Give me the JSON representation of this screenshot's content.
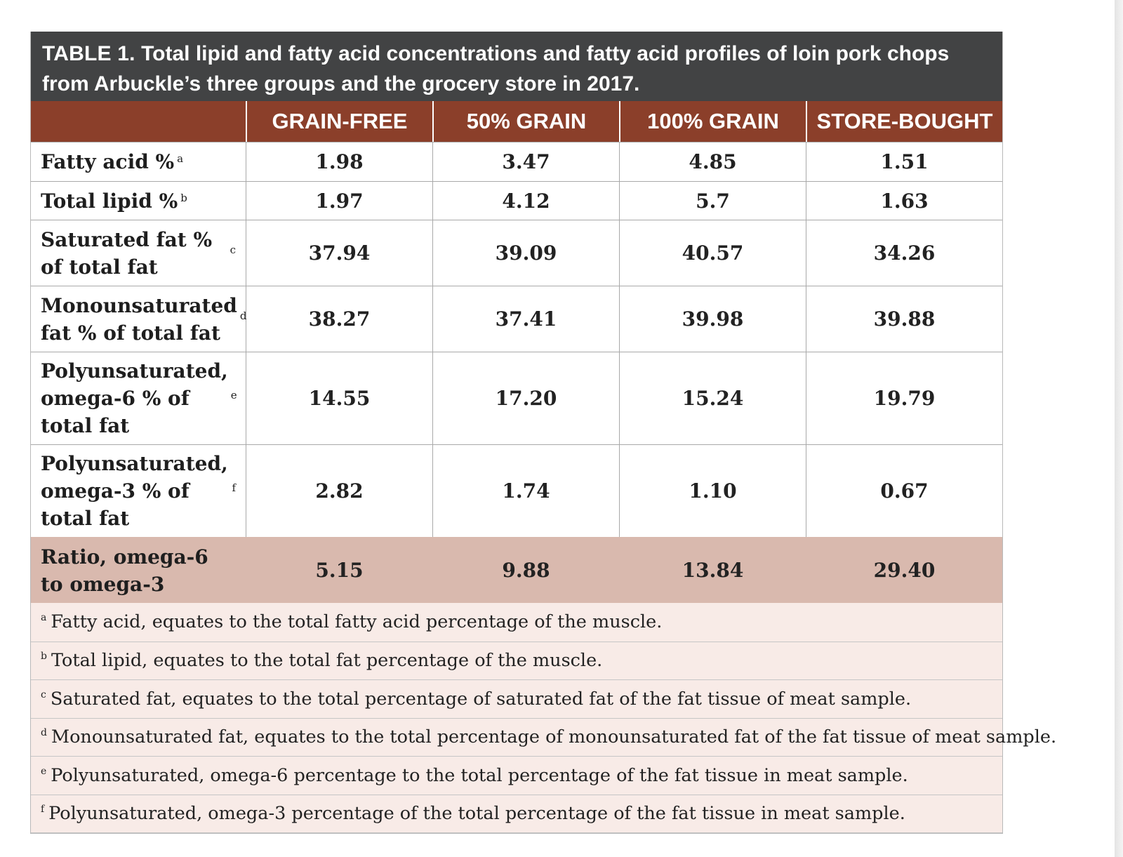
{
  "table": {
    "title_lead": "TABLE 1.",
    "title_text": "Total lipid and fatty acid concentrations and fatty acid profiles of loin pork chops from Arbuckle’s three groups and the grocery store in 2017.",
    "columns": [
      "",
      "GRAIN-FREE",
      "50% GRAIN",
      "100% GRAIN",
      "STORE-BOUGHT"
    ],
    "rows": [
      {
        "label": "Fatty acid %",
        "sup": "a",
        "values": [
          "1.98",
          "3.47",
          "4.85",
          "1.51"
        ]
      },
      {
        "label": "Total lipid %",
        "sup": "b",
        "values": [
          "1.97",
          "4.12",
          "5.7",
          "1.63"
        ]
      },
      {
        "label": "Saturated fat % of total fat",
        "sup": "c",
        "values": [
          "37.94",
          "39.09",
          "40.57",
          "34.26"
        ]
      },
      {
        "label": "Monounsaturated fat % of total fat",
        "sup": "d",
        "values": [
          "38.27",
          "37.41",
          "39.98",
          "39.88"
        ]
      },
      {
        "label": "Polyunsaturated, omega-6 % of total fat",
        "sup": "e",
        "values": [
          "14.55",
          "17.20",
          "15.24",
          "19.79"
        ]
      },
      {
        "label": "Polyunsaturated, omega-3 % of total fat",
        "sup": "f",
        "values": [
          "2.82",
          "1.74",
          "1.10",
          "0.67"
        ]
      },
      {
        "label": "Ratio, omega-6 to omega-3",
        "sup": "",
        "values": [
          "5.15",
          "9.88",
          "13.84",
          "29.40"
        ]
      }
    ],
    "footnotes": [
      {
        "sup": "a",
        "text": "Fatty acid, equates to the total fatty acid percentage of the muscle."
      },
      {
        "sup": "b",
        "text": "Total lipid, equates to the total fat percentage of the muscle."
      },
      {
        "sup": "c",
        "text": "Saturated fat, equates to the total percentage of saturated fat of the fat tissue of meat sample."
      },
      {
        "sup": "d",
        "text": "Monounsaturated fat, equates to the total percentage of monounsaturated fat of the fat tissue of meat sample."
      },
      {
        "sup": "e",
        "text": "Polyunsaturated, omega-6 percentage to the total percentage of the fat tissue in meat sample."
      },
      {
        "sup": "f",
        "text": "Polyunsaturated, omega-3 percentage of the total percentage of the fat tissue in meat sample."
      }
    ]
  },
  "colors": {
    "title_bg": "#424344",
    "header_bg": "#8b3f2a",
    "highlight_row_bg": "#d9b9ae",
    "footnote_bg": "#f8ebe7"
  }
}
